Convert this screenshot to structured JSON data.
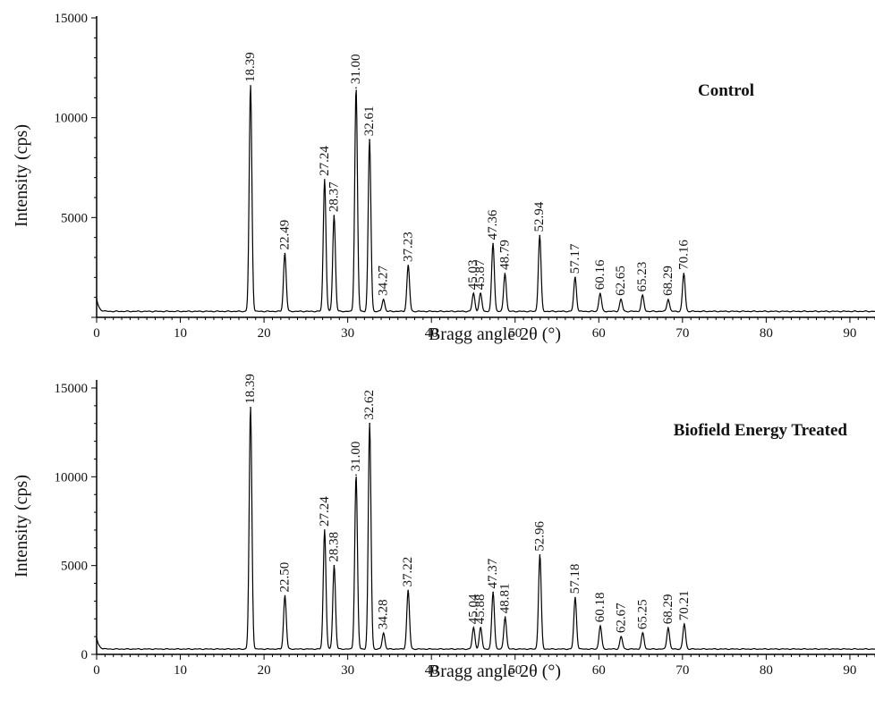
{
  "chart_data": [
    {
      "type": "line",
      "title": "Control",
      "xlabel": "Bragg angle 2θ (°)",
      "ylabel": "Intensity (cps)",
      "xlim": [
        0,
        93
      ],
      "ylim": [
        0,
        15000
      ],
      "xticks": [
        "0",
        "10",
        "20",
        "30",
        "40",
        "50",
        "60",
        "70",
        "80",
        "90"
      ],
      "yticks": [
        "5000",
        "10000",
        "15000"
      ],
      "line_color": "#000000",
      "baseline": 300,
      "peaks": [
        {
          "x": 18.39,
          "y": 11600,
          "label": "18.39"
        },
        {
          "x": 22.49,
          "y": 3200,
          "label": "22.49"
        },
        {
          "x": 27.24,
          "y": 6900,
          "label": "27.24"
        },
        {
          "x": 28.37,
          "y": 5100,
          "label": "28.37"
        },
        {
          "x": 31.0,
          "y": 11500,
          "label": "31.00"
        },
        {
          "x": 32.61,
          "y": 8900,
          "label": "32.61"
        },
        {
          "x": 34.27,
          "y": 900,
          "label": "34.27"
        },
        {
          "x": 37.23,
          "y": 2600,
          "label": "37.23"
        },
        {
          "x": 45.03,
          "y": 1200,
          "label": "45.03"
        },
        {
          "x": 45.87,
          "y": 1200,
          "label": "45.87"
        },
        {
          "x": 47.36,
          "y": 3700,
          "label": "47.36"
        },
        {
          "x": 48.79,
          "y": 2200,
          "label": "48.79"
        },
        {
          "x": 52.94,
          "y": 4100,
          "label": "52.94"
        },
        {
          "x": 57.17,
          "y": 2000,
          "label": "57.17"
        },
        {
          "x": 60.16,
          "y": 1200,
          "label": "60.16"
        },
        {
          "x": 62.65,
          "y": 900,
          "label": "62.65"
        },
        {
          "x": 65.23,
          "y": 1100,
          "label": "65.23"
        },
        {
          "x": 68.29,
          "y": 900,
          "label": "68.29"
        },
        {
          "x": 70.16,
          "y": 2200,
          "label": "70.16"
        }
      ]
    },
    {
      "type": "line",
      "title": "Biofield Energy Treated",
      "xlabel": "Bragg angle 2θ (°)",
      "ylabel": "Intensity (cps)",
      "xlim": [
        0,
        93
      ],
      "ylim": [
        0,
        15000
      ],
      "xticks": [
        "0",
        "10",
        "20",
        "30",
        "40",
        "50",
        "60",
        "70",
        "80",
        "90"
      ],
      "yticks": [
        "0",
        "5000",
        "10000",
        "15000"
      ],
      "line_color": "#000000",
      "baseline": 300,
      "peaks": [
        {
          "x": 18.39,
          "y": 13900,
          "label": "18.39"
        },
        {
          "x": 22.5,
          "y": 3300,
          "label": "22.50"
        },
        {
          "x": 27.24,
          "y": 7000,
          "label": "27.24"
        },
        {
          "x": 28.38,
          "y": 5000,
          "label": "28.38"
        },
        {
          "x": 31.0,
          "y": 10100,
          "label": "31.00"
        },
        {
          "x": 32.62,
          "y": 13000,
          "label": "32.62"
        },
        {
          "x": 34.28,
          "y": 1200,
          "label": "34.28"
        },
        {
          "x": 37.22,
          "y": 3600,
          "label": "37.22"
        },
        {
          "x": 45.04,
          "y": 1500,
          "label": "45.04"
        },
        {
          "x": 45.88,
          "y": 1500,
          "label": "45.88"
        },
        {
          "x": 47.37,
          "y": 3500,
          "label": "47.37"
        },
        {
          "x": 48.81,
          "y": 2100,
          "label": "48.81"
        },
        {
          "x": 52.96,
          "y": 5600,
          "label": "52.96"
        },
        {
          "x": 57.18,
          "y": 3200,
          "label": "57.18"
        },
        {
          "x": 60.18,
          "y": 1600,
          "label": "60.18"
        },
        {
          "x": 62.67,
          "y": 1000,
          "label": "62.67"
        },
        {
          "x": 65.25,
          "y": 1200,
          "label": "65.25"
        },
        {
          "x": 68.29,
          "y": 1500,
          "label": "68.29"
        },
        {
          "x": 70.21,
          "y": 1700,
          "label": "70.21"
        }
      ]
    }
  ]
}
